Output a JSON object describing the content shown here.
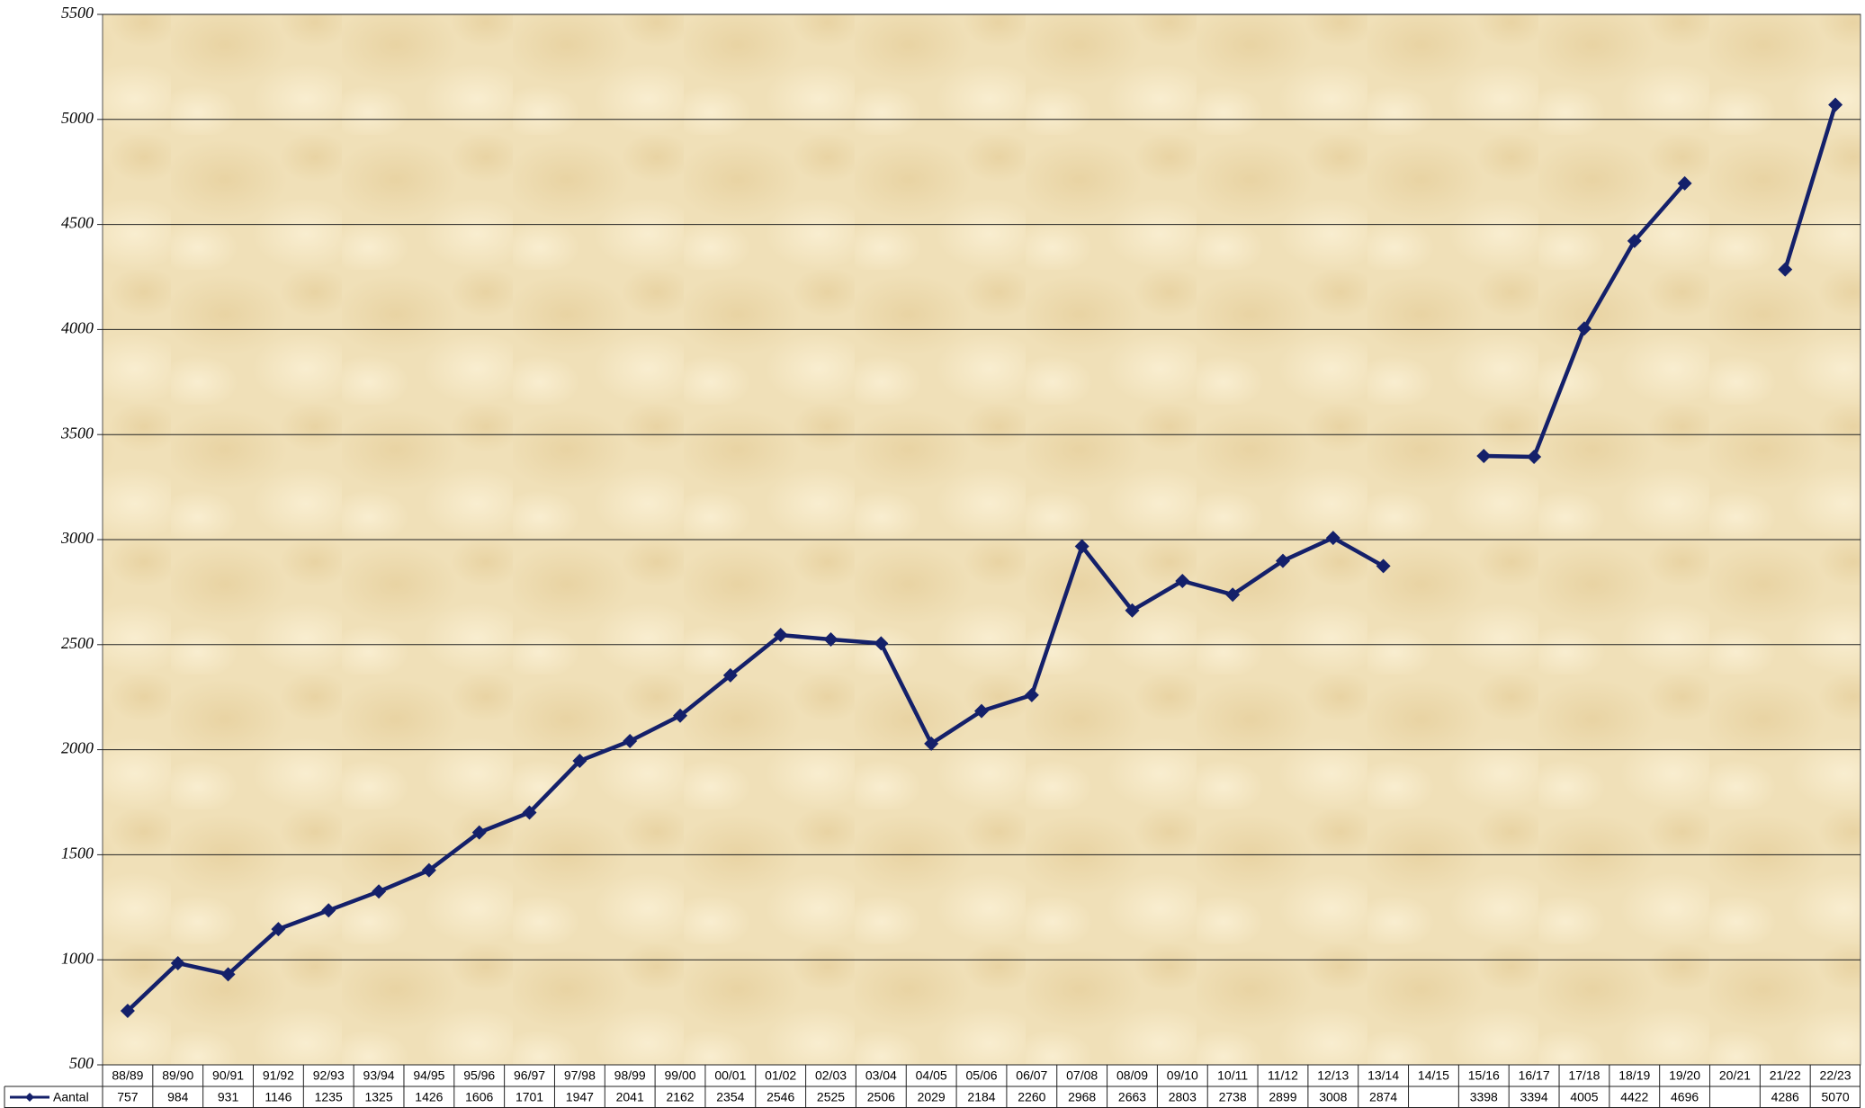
{
  "chart_data": {
    "type": "line",
    "categories": [
      "88/89",
      "89/90",
      "90/91",
      "91/92",
      "92/93",
      "93/94",
      "94/95",
      "95/96",
      "96/97",
      "97/98",
      "98/99",
      "99/00",
      "00/01",
      "01/02",
      "02/03",
      "03/04",
      "04/05",
      "05/06",
      "06/07",
      "07/08",
      "08/09",
      "09/10",
      "10/11",
      "11/12",
      "12/13",
      "13/14",
      "14/15",
      "15/16",
      "16/17",
      "17/18",
      "18/19",
      "19/20",
      "20/21",
      "21/22",
      "22/23"
    ],
    "series": [
      {
        "name": "Aantal",
        "color": "#14206a",
        "values": [
          757,
          984,
          931,
          1146,
          1235,
          1325,
          1426,
          1606,
          1701,
          1947,
          2041,
          2162,
          2354,
          2546,
          2525,
          2506,
          2029,
          2184,
          2260,
          2968,
          2663,
          2803,
          2738,
          2899,
          3008,
          2874,
          null,
          3398,
          3394,
          4005,
          4422,
          4696,
          null,
          4286,
          5070
        ]
      }
    ],
    "ylim": [
      500,
      5500
    ],
    "yticks": [
      500,
      1000,
      1500,
      2000,
      2500,
      3000,
      3500,
      4000,
      4500,
      5000,
      5500
    ],
    "grid": true
  }
}
